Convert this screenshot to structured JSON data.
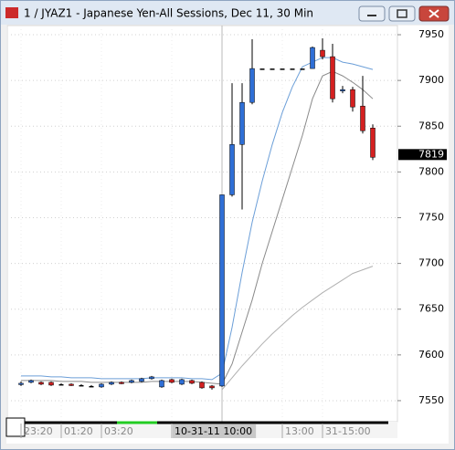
{
  "chart_data": {
    "type": "candlestick",
    "title": "1 / JYAZ1 - Japanese Yen-All Sessions, Dec 11, 30 Min",
    "categories": [
      "23:20",
      null,
      null,
      null,
      "01:20",
      null,
      null,
      null,
      "03:20",
      null,
      null,
      null,
      null,
      null,
      null,
      "10-31-11  10:00",
      null,
      null,
      null,
      null,
      null,
      null,
      null,
      null,
      null,
      null,
      "13:00",
      null,
      null,
      null,
      "31-15:00",
      null,
      null,
      null,
      null,
      null
    ],
    "open": [
      7568,
      7570,
      7570,
      7570,
      7568,
      7568,
      7567,
      7566,
      7565,
      7568,
      7570,
      7570,
      7571,
      7574,
      7565,
      7573,
      7568,
      7572,
      7570,
      7566,
      7566,
      7775,
      7830,
      7876,
      7913,
      7913,
      7913,
      7913,
      7913,
      7913,
      7933,
      7926,
      7889,
      7890,
      7872,
      7848
    ],
    "high": [
      7571,
      7573,
      7571,
      7571,
      7569,
      7569,
      7568,
      7567,
      7569,
      7571,
      7571,
      7573,
      7575,
      7577,
      7573,
      7574,
      7574,
      7573,
      7571,
      7567,
      7775,
      7897,
      7897,
      7945,
      7913,
      7913,
      7913,
      7913,
      7913,
      7937,
      7946,
      7940,
      7894,
      7893,
      7905,
      7852
    ],
    "low": [
      7566,
      7569,
      7567,
      7566,
      7567,
      7566,
      7566,
      7565,
      7564,
      7567,
      7568,
      7569,
      7570,
      7573,
      7564,
      7569,
      7567,
      7568,
      7563,
      7562,
      7565,
      7773,
      7759,
      7874,
      7913,
      7913,
      7913,
      7913,
      7913,
      7913,
      7923,
      7876,
      7886,
      7866,
      7842,
      7813
    ],
    "close": [
      7569,
      7572,
      7568,
      7567,
      7568,
      7567,
      7567,
      7566,
      7568,
      7570,
      7569,
      7572,
      7574,
      7576,
      7572,
      7570,
      7573,
      7569,
      7564,
      7564,
      7775,
      7830,
      7876,
      7913,
      7913,
      7913,
      7913,
      7913,
      7913,
      7936,
      7926,
      7880,
      7890,
      7871,
      7845,
      7816
    ],
    "up_color": "#2f6fd6",
    "down_color": "#d42020",
    "flat_color": "#000000",
    "overlays": [
      {
        "color": "#6c9fd8",
        "values": [
          7577,
          7577,
          7577,
          7576,
          7576,
          7575,
          7575,
          7575,
          7574,
          7574,
          7574,
          7574,
          7574,
          7575,
          7575,
          7575,
          7575,
          7574,
          7574,
          7573,
          7580,
          7630,
          7690,
          7745,
          7790,
          7830,
          7865,
          7893,
          7915,
          7920,
          7925,
          7925,
          7920,
          7918,
          7915,
          7912
        ]
      },
      {
        "color": "#8a8a8a",
        "values": [
          7572,
          7572,
          7572,
          7572,
          7571,
          7571,
          7571,
          7570,
          7570,
          7570,
          7570,
          7570,
          7570,
          7571,
          7571,
          7571,
          7571,
          7571,
          7570,
          7569,
          7568,
          7590,
          7625,
          7660,
          7700,
          7735,
          7770,
          7805,
          7840,
          7880,
          7905,
          7910,
          7905,
          7898,
          7890,
          7880
        ]
      },
      {
        "color": "#b0b0b0",
        "values": [
          null,
          null,
          null,
          null,
          null,
          null,
          null,
          null,
          null,
          null,
          null,
          null,
          null,
          null,
          null,
          null,
          null,
          null,
          null,
          null,
          7562,
          7575,
          7588,
          7600,
          7612,
          7623,
          7633,
          7643,
          7652,
          7660,
          7668,
          7675,
          7682,
          7689,
          7693,
          7697
        ]
      }
    ],
    "last_price": 7819,
    "ylim": [
      7527,
      7960
    ],
    "yticks": [
      7550,
      7600,
      7650,
      7700,
      7750,
      7800,
      7850,
      7900,
      7950
    ],
    "grid": true
  }
}
